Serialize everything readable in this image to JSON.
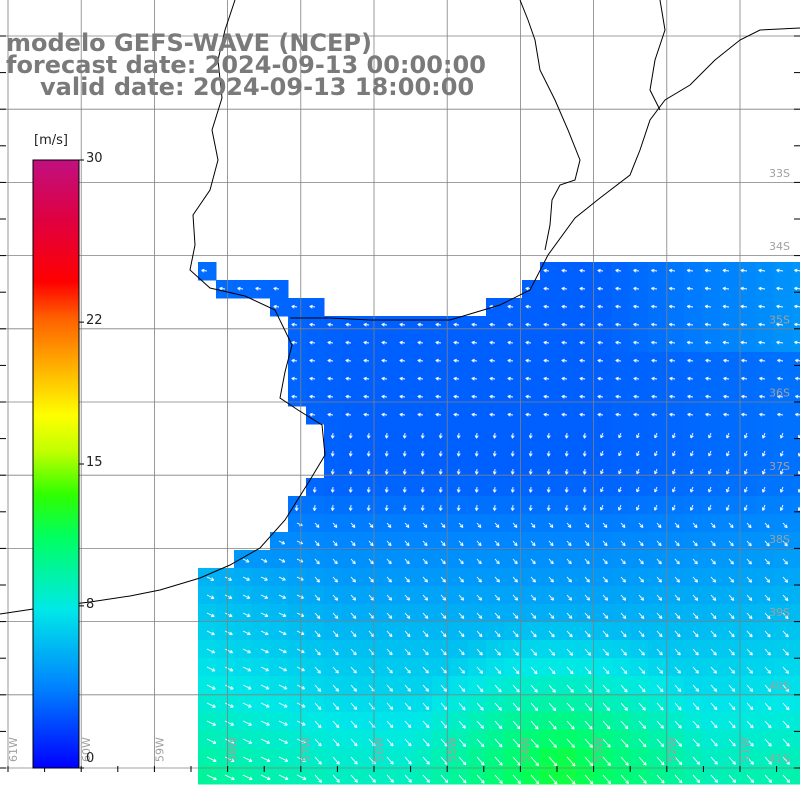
{
  "title": {
    "line1": "modelo GEFS-WAVE (NCEP)",
    "line2": "forecast date: 2024-09-13 00:00:00",
    "line3": "valid date: 2024-09-13 18:00:00"
  },
  "colorbar": {
    "unit": "[m/s]",
    "ticks": [
      {
        "value": 30,
        "label": "30"
      },
      {
        "value": 22,
        "label": "22"
      },
      {
        "value": 15,
        "label": "15"
      },
      {
        "value": 8,
        "label": "8"
      },
      {
        "value": 0,
        "label": "0"
      }
    ],
    "colors": [
      "#0000ff",
      "#0090ff",
      "#00e0e0",
      "#00ff40",
      "#90ff00",
      "#ffff00",
      "#ff9000",
      "#ff1000",
      "#e00050",
      "#c01080"
    ]
  },
  "lat_labels": [
    "33S",
    "34S",
    "35S",
    "36S",
    "37S",
    "38S",
    "39S",
    "40S",
    "41S"
  ],
  "lon_labels": [
    "61W",
    "60W",
    "59W",
    "58W",
    "57W",
    "56W",
    "55W",
    "54W",
    "53W",
    "52W",
    "51W"
  ],
  "colors": {
    "land": "#ffffff",
    "grid": "#808080",
    "arrow": "#ffffff",
    "title": "#7a7a7a"
  }
}
